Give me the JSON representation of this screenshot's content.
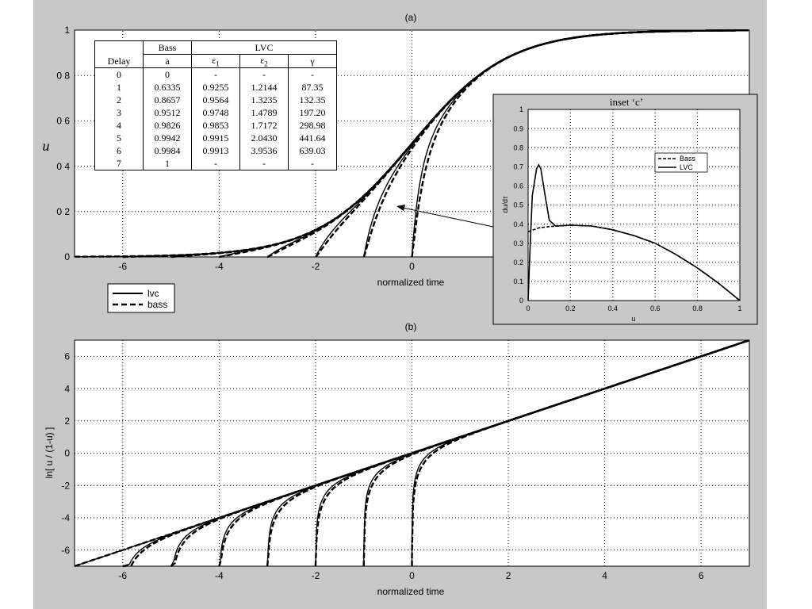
{
  "chart_data": [
    {
      "id": "a",
      "type": "line",
      "title": "(a)",
      "xlabel": "normalized time",
      "ylabel": "u",
      "xlim": [
        -7,
        7
      ],
      "ylim": [
        0,
        1
      ],
      "xticks": [
        -6,
        -4,
        -2,
        0
      ],
      "yticks": [
        0,
        0.2,
        0.4,
        0.6,
        0.8,
        1
      ],
      "ytick_labels": [
        "0",
        "0 2",
        "0 4",
        "0 6",
        "0 8",
        "1"
      ],
      "grid": true,
      "legend": {
        "position": "bottom-left",
        "entries": [
          {
            "label": "lvc",
            "style": "solid"
          },
          {
            "label": "bass",
            "style": "dashed"
          }
        ]
      },
      "curves": [
        {
          "delay": 0,
          "start_x": 0
        },
        {
          "delay": 1,
          "start_x": -1
        },
        {
          "delay": 2,
          "start_x": -2
        },
        {
          "delay": 3,
          "start_x": -3
        },
        {
          "delay": 4,
          "start_x": -4
        },
        {
          "delay": 5,
          "start_x": -5
        },
        {
          "delay": 6,
          "start_x": -6
        },
        {
          "delay": 7,
          "start_x": -7
        }
      ]
    },
    {
      "id": "b",
      "type": "line",
      "title": "(b)",
      "xlabel": "normalized time",
      "ylabel": "ln[ u / (1-u) ]",
      "xlim": [
        -7,
        7
      ],
      "ylim": [
        -7,
        7
      ],
      "xticks": [
        -6,
        -4,
        -2,
        0,
        2,
        4,
        6
      ],
      "yticks": [
        -6,
        -4,
        -2,
        0,
        2,
        4,
        6
      ],
      "grid": true
    },
    {
      "id": "c",
      "type": "line",
      "title": "inset ‘c’",
      "xlabel": "u",
      "ylabel": "du/dτ",
      "xlim": [
        0,
        1
      ],
      "ylim": [
        0,
        1
      ],
      "xticks": [
        0,
        0.2,
        0.4,
        0.6,
        0.8,
        1
      ],
      "yticks": [
        0,
        0.1,
        0.2,
        0.3,
        0.4,
        0.5,
        0.6,
        0.7,
        0.8,
        0.9,
        1
      ],
      "grid": true,
      "legend": {
        "position": "top-right",
        "entries": [
          {
            "label": "Bass",
            "style": "dashed"
          },
          {
            "label": "LVC",
            "style": "solid"
          }
        ]
      },
      "series": [
        {
          "name": "Bass",
          "x": [
            0,
            0.05,
            0.1,
            0.2,
            0.3,
            0.4,
            0.5,
            0.6,
            0.7,
            0.8,
            0.9,
            1.0
          ],
          "y": [
            0.36,
            0.38,
            0.387,
            0.394,
            0.39,
            0.37,
            0.34,
            0.3,
            0.24,
            0.17,
            0.09,
            0.0
          ]
        },
        {
          "name": "LVC",
          "x": [
            0,
            0.01,
            0.02,
            0.04,
            0.05,
            0.06,
            0.08,
            0.1,
            0.13,
            0.2,
            0.3,
            0.4,
            0.5,
            0.6,
            0.7,
            0.8,
            0.9,
            1.0
          ],
          "y": [
            0.0,
            0.3,
            0.55,
            0.69,
            0.71,
            0.69,
            0.55,
            0.42,
            0.39,
            0.394,
            0.39,
            0.37,
            0.34,
            0.3,
            0.24,
            0.17,
            0.09,
            0.0
          ]
        }
      ]
    }
  ],
  "table": {
    "headers_top": [
      "",
      "Bass",
      "LVC"
    ],
    "headers_sub": [
      "Delay",
      "a",
      "ε1",
      "ε2",
      "γ"
    ],
    "rows": [
      [
        "0",
        "0",
        "-",
        "-",
        "-"
      ],
      [
        "1",
        "0.6335",
        "0.9255",
        "1.2144",
        "87.35"
      ],
      [
        "2",
        "0.8657",
        "0.9564",
        "1.3235",
        "132.35"
      ],
      [
        "3",
        "0.9512",
        "0.9748",
        "1.4789",
        "197.20"
      ],
      [
        "4",
        "0.9826",
        "0.9853",
        "1.7172",
        "298.98"
      ],
      [
        "5",
        "0.9942",
        "0.9915",
        "2.0430",
        "441.64"
      ],
      [
        "6",
        "0.9984",
        "0.9913",
        "3.9536",
        "639.03"
      ],
      [
        "7",
        "1",
        "-",
        "-",
        "-"
      ]
    ]
  }
}
